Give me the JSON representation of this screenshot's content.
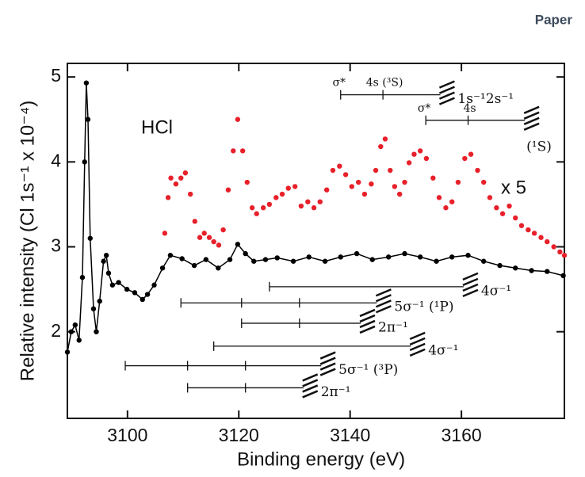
{
  "page_label": "Paper",
  "chart_data": {
    "type": "scatter",
    "xlabel": "Binding energy (eV)",
    "ylabel": "Relative intensity (Cl 1s⁻¹ x 10⁻⁴)",
    "xlim": [
      3089.2,
      3178.5
    ],
    "ylim": [
      0.98,
      5.16
    ],
    "xticks": [
      3100,
      3120,
      3140,
      3160
    ],
    "yticks": [
      2,
      3,
      4,
      5
    ],
    "annotations": [
      "HCl",
      "x 5"
    ],
    "series": [
      {
        "color": "#000000",
        "style": "line+markers",
        "x": [
          3089.2,
          3089.9,
          3090.6,
          3091.3,
          3091.9,
          3092.3,
          3092.6,
          3092.9,
          3093.3,
          3093.9,
          3094.4,
          3095.0,
          3095.7,
          3096.2,
          3096.6,
          3097.3,
          3098.4,
          3099.9,
          3101.3,
          3102.7,
          3103.6,
          3104.8,
          3106.3,
          3107.7,
          3109.8,
          3112.0,
          3114.1,
          3116.3,
          3118.4,
          3119.8,
          3121.2,
          3122.7,
          3124.8,
          3126.9,
          3129.8,
          3132.6,
          3135.5,
          3138.3,
          3141.2,
          3144.0,
          3146.9,
          3149.8,
          3152.6,
          3155.5,
          3158.3,
          3161.2,
          3164.0,
          3166.9,
          3169.7,
          3172.6,
          3175.4,
          3178.3
        ],
        "values": [
          1.76,
          2.0,
          2.08,
          1.9,
          2.64,
          4.0,
          4.93,
          4.5,
          3.1,
          2.27,
          2.0,
          2.36,
          2.83,
          2.9,
          2.69,
          2.55,
          2.58,
          2.5,
          2.46,
          2.38,
          2.44,
          2.55,
          2.75,
          2.9,
          2.86,
          2.78,
          2.85,
          2.75,
          2.85,
          3.03,
          2.92,
          2.83,
          2.85,
          2.87,
          2.83,
          2.88,
          2.83,
          2.88,
          2.92,
          2.85,
          2.88,
          2.92,
          2.88,
          2.83,
          2.88,
          2.9,
          2.83,
          2.78,
          2.75,
          2.72,
          2.71,
          2.66
        ]
      },
      {
        "color": "#e8202a",
        "style": "markers",
        "x": [
          3106.7,
          3107.3,
          3107.8,
          3108.7,
          3109.6,
          3110.4,
          3111.3,
          3112.1,
          3113.0,
          3113.8,
          3114.7,
          3115.5,
          3116.4,
          3117.2,
          3118.1,
          3119.0,
          3119.8,
          3120.7,
          3121.5,
          3122.4,
          3123.2,
          3124.4,
          3125.5,
          3126.7,
          3127.8,
          3128.9,
          3130.1,
          3131.2,
          3132.4,
          3133.5,
          3134.6,
          3135.8,
          3136.9,
          3138.1,
          3139.2,
          3140.3,
          3141.5,
          3142.6,
          3143.8,
          3144.6,
          3145.5,
          3146.3,
          3147.2,
          3148.0,
          3148.9,
          3149.8,
          3150.6,
          3151.5,
          3152.6,
          3153.7,
          3154.9,
          3156.0,
          3157.2,
          3158.3,
          3159.4,
          3160.6,
          3161.7,
          3162.9,
          3164.0,
          3165.1,
          3166.3,
          3167.4,
          3168.6,
          3169.7,
          3170.8,
          3172.0,
          3173.1,
          3174.3,
          3175.4,
          3176.6,
          3177.7,
          3178.5
        ],
        "values": [
          3.16,
          3.58,
          3.81,
          3.74,
          3.81,
          3.87,
          3.62,
          3.3,
          3.11,
          3.16,
          3.11,
          3.06,
          3.02,
          3.2,
          3.67,
          4.13,
          4.5,
          4.13,
          3.76,
          3.46,
          3.39,
          3.46,
          3.5,
          3.58,
          3.62,
          3.69,
          3.71,
          3.48,
          3.53,
          3.46,
          3.53,
          3.67,
          3.9,
          3.95,
          3.85,
          3.71,
          3.76,
          3.62,
          3.74,
          3.9,
          4.18,
          4.27,
          3.9,
          3.71,
          3.62,
          3.76,
          3.99,
          4.09,
          4.13,
          4.04,
          3.81,
          3.58,
          3.46,
          3.53,
          3.76,
          4.04,
          4.09,
          3.9,
          3.76,
          3.58,
          3.46,
          3.39,
          3.48,
          3.34,
          3.25,
          3.2,
          3.16,
          3.11,
          3.06,
          3.0,
          2.94,
          2.9
        ]
      }
    ],
    "ladders": [
      {
        "label": "1s⁻¹2s⁻¹",
        "y": 4.79,
        "x": [
          3138.3,
          3145.9,
          3156.2
        ],
        "tick_labels": [
          "σ*",
          "4s (³S)",
          null
        ]
      },
      {
        "label": "(¹S)",
        "y": 4.49,
        "x": [
          3153.6,
          3161.2,
          3171.4
        ],
        "tick_labels": [
          "σ*",
          "4s",
          null
        ]
      },
      {
        "label": "4σ⁻¹",
        "y": 2.53,
        "x": [
          3125.5,
          3160.4
        ]
      },
      {
        "label": "5σ⁻¹ (¹P)",
        "y": 2.34,
        "x": [
          3109.6,
          3120.5,
          3130.9,
          3144.8
        ]
      },
      {
        "label": "2π⁻¹",
        "y": 2.1,
        "x": [
          3120.5,
          3130.9,
          3141.9
        ]
      },
      {
        "label": "4σ⁻¹",
        "y": 1.83,
        "x": [
          3115.5,
          3150.9
        ]
      },
      {
        "label": "5σ⁻¹ (³P)",
        "y": 1.6,
        "x": [
          3099.6,
          3110.8,
          3121.2,
          3134.8
        ]
      },
      {
        "label": "2π⁻¹",
        "y": 1.34,
        "x": [
          3110.8,
          3121.2,
          3131.6
        ]
      }
    ]
  }
}
